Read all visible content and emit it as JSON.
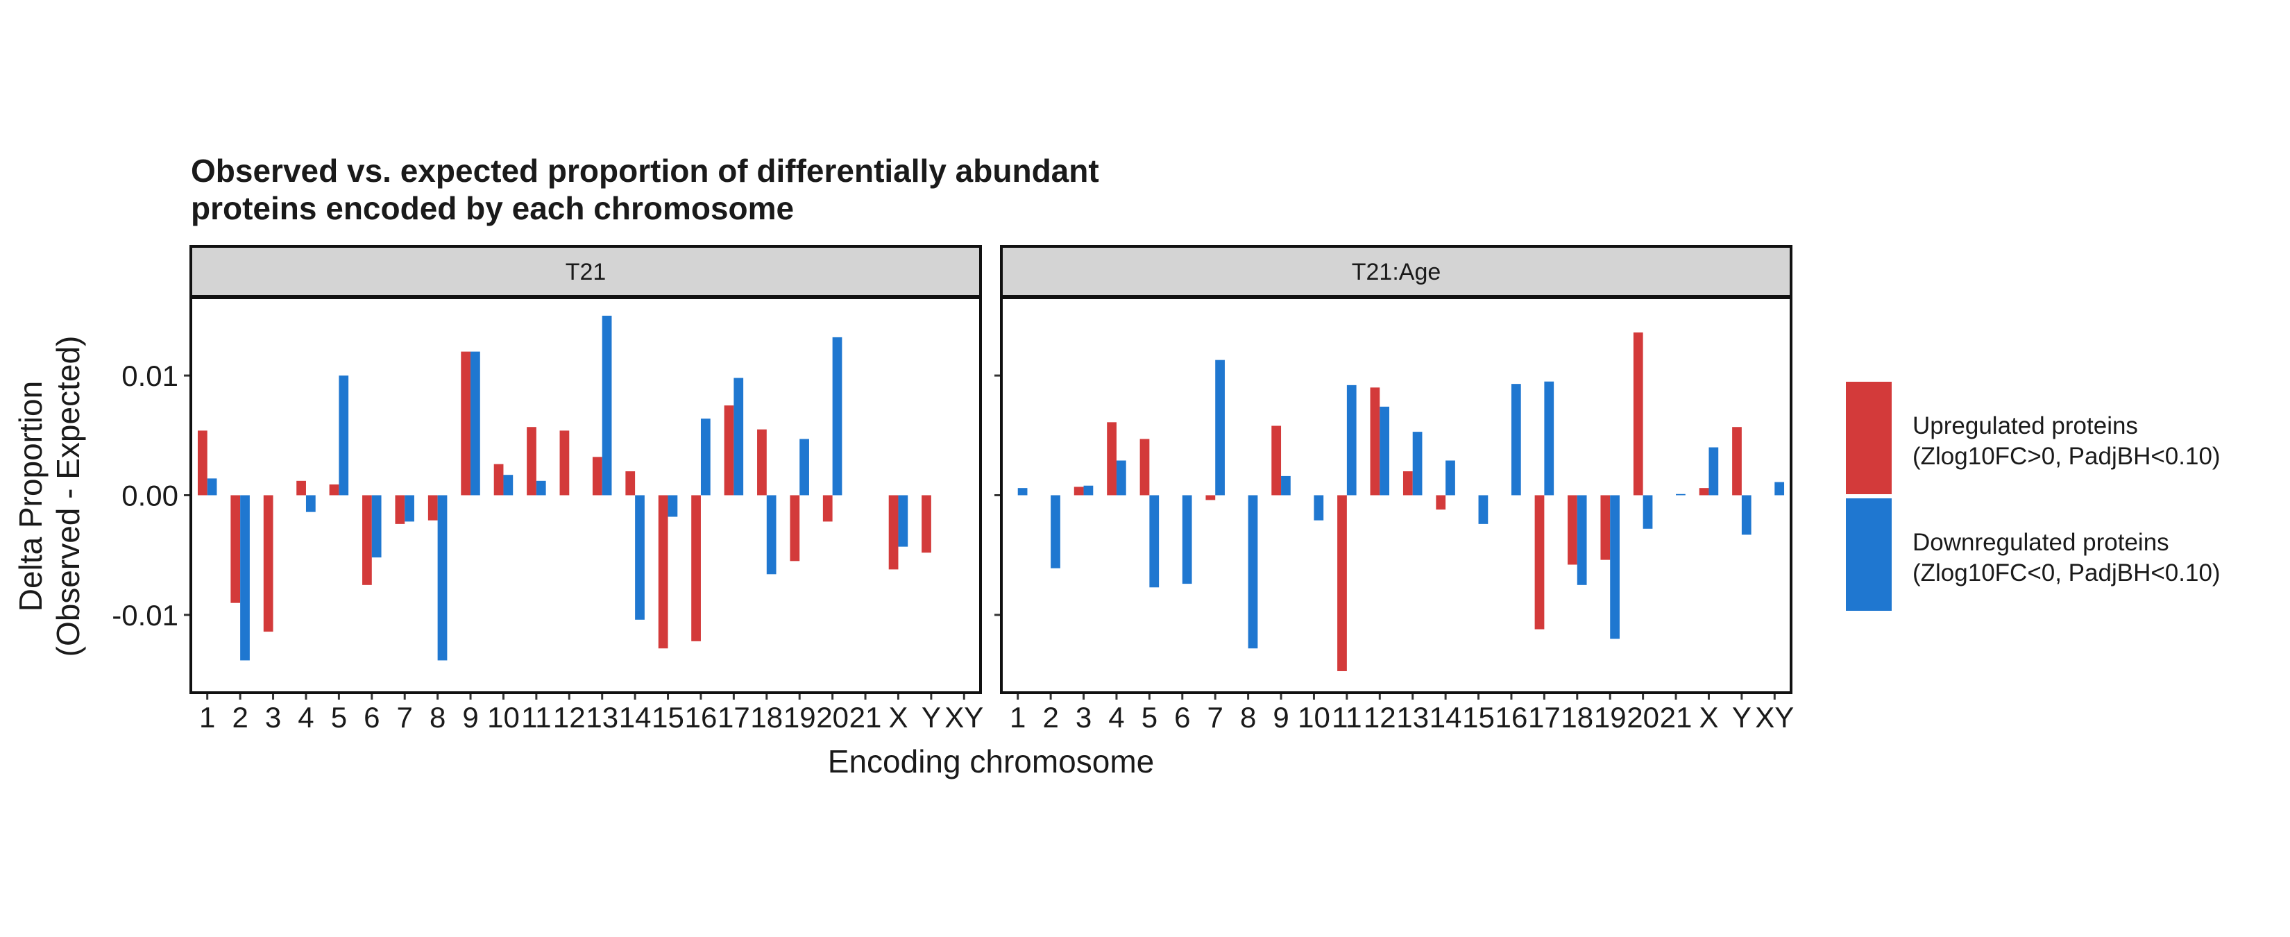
{
  "chart_data": {
    "type": "bar",
    "title_lines": [
      "Observed vs. expected proportion of differentially abundant",
      "proteins encoded by each chromosome"
    ],
    "xlabel": "Encoding chromosome",
    "ylabel_lines": [
      "Delta Proportion",
      "(Observed - Expected)"
    ],
    "ylim": [
      -0.0165,
      0.0165
    ],
    "y_ticks": [
      -0.01,
      0.0,
      0.01
    ],
    "y_tick_labels": [
      "-0.01",
      "0.00",
      "0.01"
    ],
    "grid": false,
    "legend_position": "right",
    "categories": [
      "1",
      "2",
      "3",
      "4",
      "5",
      "6",
      "7",
      "8",
      "9",
      "10",
      "11",
      "12",
      "13",
      "14",
      "15",
      "16",
      "17",
      "18",
      "19",
      "20",
      "21",
      "X",
      "Y",
      "XY"
    ],
    "colors": {
      "up": "#d33a3a",
      "down": "#1f77d0",
      "strip_bg": "#d4d4d4"
    },
    "series": [
      {
        "key": "up",
        "name": "Upregulated proteins",
        "name_detail": "(Zlog10FC>0, PadjBH<0.10)"
      },
      {
        "key": "down",
        "name": "Downregulated proteins",
        "name_detail": "(Zlog10FC<0, PadjBH<0.10)"
      }
    ],
    "panels": [
      {
        "label": "T21",
        "up": [
          0.0054,
          -0.009,
          -0.0114,
          0.0012,
          0.0009,
          -0.0075,
          -0.0024,
          -0.0021,
          0.012,
          0.0026,
          0.0057,
          0.0054,
          0.0032,
          0.002,
          -0.0128,
          -0.0122,
          0.0075,
          0.0055,
          -0.0055,
          -0.0022,
          0.0,
          -0.0062,
          -0.0048,
          0.0
        ],
        "down": [
          0.0014,
          -0.0138,
          0.0,
          -0.0014,
          0.01,
          -0.0052,
          -0.0022,
          -0.0138,
          0.012,
          0.0017,
          0.0012,
          0.0,
          0.015,
          -0.0104,
          -0.0018,
          0.0064,
          0.0098,
          -0.0066,
          0.0047,
          0.0132,
          0.0,
          -0.0043,
          0.0,
          0.0
        ]
      },
      {
        "label": "T21:Age",
        "up": [
          0.0,
          0.0,
          0.0007,
          0.0061,
          0.0047,
          0.0,
          -0.0004,
          0.0,
          0.0058,
          0.0,
          -0.0147,
          0.009,
          0.002,
          -0.0012,
          0.0,
          0.0,
          -0.0112,
          -0.0058,
          -0.0054,
          0.0136,
          0.0,
          0.0006,
          0.0057,
          0.0
        ],
        "down": [
          0.0006,
          -0.0061,
          0.0008,
          0.0029,
          -0.0077,
          -0.0074,
          0.0113,
          -0.0128,
          0.0016,
          -0.0021,
          0.0092,
          0.0074,
          0.0053,
          0.0029,
          -0.0024,
          0.0093,
          0.0095,
          -0.0075,
          -0.012,
          -0.0028,
          0.0001,
          0.004,
          -0.0033,
          0.0011
        ]
      }
    ]
  }
}
